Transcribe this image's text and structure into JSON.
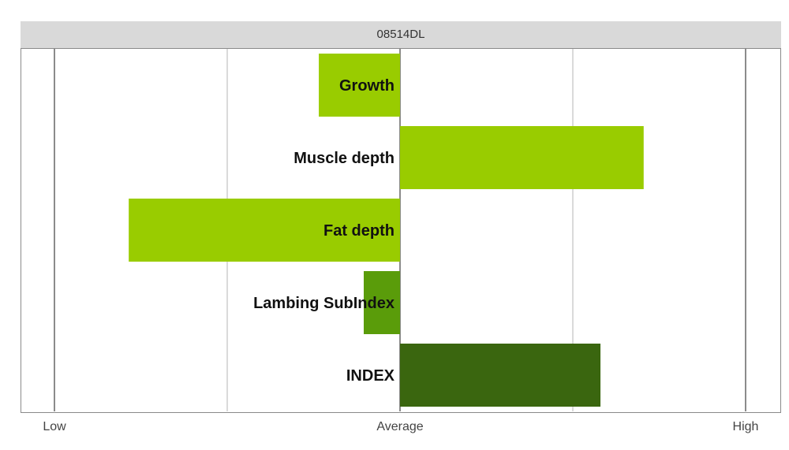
{
  "chart_data": {
    "type": "bar",
    "orientation": "horizontal",
    "title": "08514DL",
    "categories": [
      "Growth",
      "Muscle depth",
      "Fat depth",
      "Lambing SubIndex",
      "INDEX"
    ],
    "values": [
      -0.47,
      1.41,
      -1.57,
      -0.21,
      1.16
    ],
    "bar_colors": [
      "#99cc00",
      "#99cc00",
      "#99cc00",
      "#5a9c0a",
      "#3a660f"
    ],
    "xlim": [
      -2,
      2
    ],
    "x_ticks": [
      {
        "value": -2,
        "label": "Low"
      },
      {
        "value": 0,
        "label": "Average"
      },
      {
        "value": 2,
        "label": "High"
      }
    ],
    "grid": true,
    "legend": "none",
    "xlabel": "",
    "ylabel": ""
  }
}
